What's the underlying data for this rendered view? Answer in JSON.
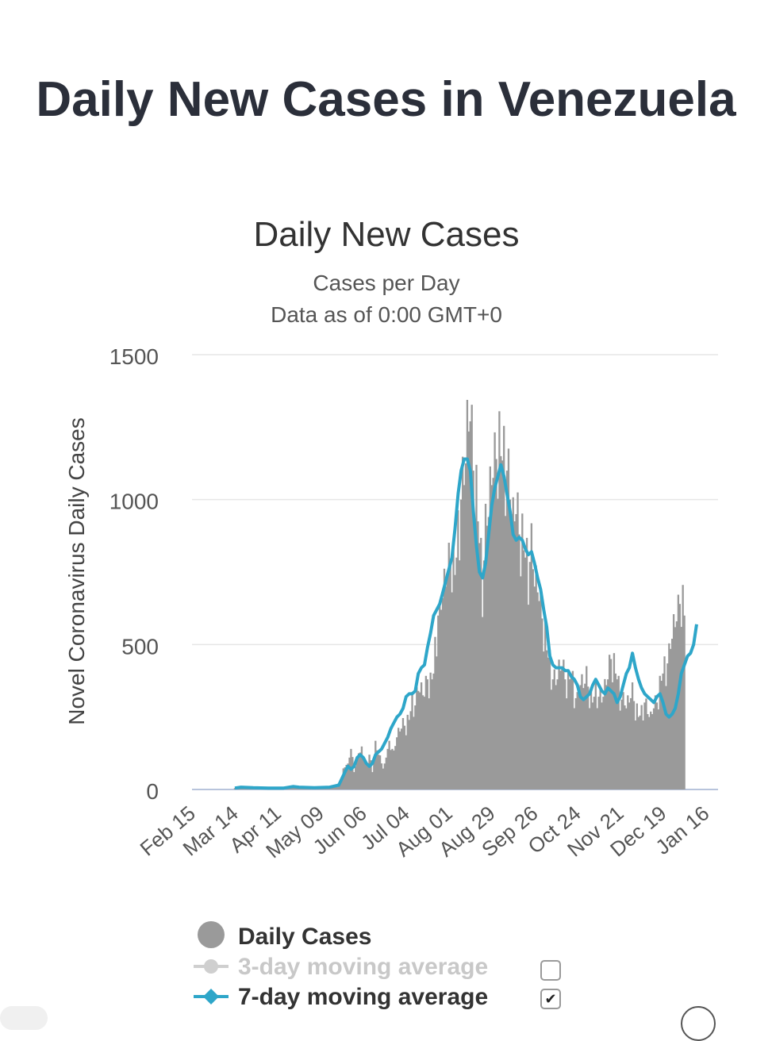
{
  "page": {
    "title": "Daily New Cases in Venezuela"
  },
  "colors": {
    "bars": "#9a9a9a",
    "ma7": "#2ea6c9",
    "ma3": "#cfcfcf",
    "grid": "#e6e6e6",
    "text": "#333333"
  },
  "chart_data": {
    "type": "bar",
    "title": "Daily New Cases",
    "subtitle_line1": "Cases per Day",
    "subtitle_line2": "Data as of 0:00 GMT+0",
    "ylabel": "Novel Coronavirus Daily Cases",
    "xlabel": "",
    "ylim": [
      0,
      1500
    ],
    "yticks": [
      0,
      500,
      1000,
      1500
    ],
    "x_range_days": [
      0,
      344
    ],
    "xticks": [
      {
        "day": 0,
        "label": "Feb 15"
      },
      {
        "day": 28,
        "label": "Mar 14"
      },
      {
        "day": 56,
        "label": "Apr 11"
      },
      {
        "day": 84,
        "label": "May 09"
      },
      {
        "day": 112,
        "label": "Jun 06"
      },
      {
        "day": 140,
        "label": "Jul 04"
      },
      {
        "day": 168,
        "label": "Aug 01"
      },
      {
        "day": 196,
        "label": "Aug 29"
      },
      {
        "day": 224,
        "label": "Sep 26"
      },
      {
        "day": 252,
        "label": "Oct 24"
      },
      {
        "day": 280,
        "label": "Nov 21"
      },
      {
        "day": 308,
        "label": "Dec 19"
      },
      {
        "day": 336,
        "label": "Jan 16"
      }
    ],
    "series": [
      {
        "name": "Daily Cases",
        "kind": "bar",
        "points": [
          [
            28,
            5
          ],
          [
            40,
            8
          ],
          [
            55,
            5
          ],
          [
            66,
            10
          ],
          [
            80,
            5
          ],
          [
            95,
            10
          ],
          [
            98,
            40
          ],
          [
            100,
            90
          ],
          [
            102,
            80
          ],
          [
            104,
            140
          ],
          [
            106,
            60
          ],
          [
            108,
            100
          ],
          [
            110,
            150
          ],
          [
            114,
            80
          ],
          [
            116,
            120
          ],
          [
            118,
            60
          ],
          [
            120,
            150
          ],
          [
            122,
            120
          ],
          [
            124,
            90
          ],
          [
            126,
            80
          ],
          [
            128,
            140
          ],
          [
            130,
            160
          ],
          [
            132,
            120
          ],
          [
            134,
            180
          ],
          [
            136,
            200
          ],
          [
            138,
            220
          ],
          [
            140,
            220
          ],
          [
            142,
            240
          ],
          [
            144,
            300
          ],
          [
            146,
            290
          ],
          [
            148,
            340
          ],
          [
            150,
            330
          ],
          [
            152,
            320
          ],
          [
            154,
            380
          ],
          [
            156,
            360
          ],
          [
            158,
            400
          ],
          [
            160,
            540
          ],
          [
            161,
            600
          ],
          [
            162,
            580
          ],
          [
            164,
            660
          ],
          [
            166,
            700
          ],
          [
            168,
            760
          ],
          [
            170,
            800
          ],
          [
            172,
            740
          ],
          [
            174,
            860
          ],
          [
            176,
            1000
          ],
          [
            178,
            1050
          ],
          [
            180,
            1200
          ],
          [
            182,
            1270
          ],
          [
            184,
            1100
          ],
          [
            186,
            1000
          ],
          [
            188,
            850
          ],
          [
            190,
            700
          ],
          [
            192,
            880
          ],
          [
            194,
            940
          ],
          [
            196,
            1050
          ],
          [
            198,
            1100
          ],
          [
            200,
            1180
          ],
          [
            202,
            1150
          ],
          [
            204,
            1120
          ],
          [
            206,
            1100
          ],
          [
            208,
            1000
          ],
          [
            210,
            900
          ],
          [
            212,
            950
          ],
          [
            214,
            880
          ],
          [
            216,
            850
          ],
          [
            218,
            800
          ],
          [
            220,
            750
          ],
          [
            222,
            820
          ],
          [
            224,
            700
          ],
          [
            226,
            680
          ],
          [
            228,
            620
          ],
          [
            230,
            560
          ],
          [
            232,
            480
          ],
          [
            234,
            430
          ],
          [
            236,
            380
          ],
          [
            238,
            360
          ],
          [
            240,
            400
          ],
          [
            242,
            420
          ],
          [
            244,
            380
          ],
          [
            246,
            360
          ],
          [
            248,
            400
          ],
          [
            250,
            330
          ],
          [
            252,
            300
          ],
          [
            254,
            360
          ],
          [
            256,
            350
          ],
          [
            258,
            380
          ],
          [
            260,
            330
          ],
          [
            262,
            300
          ],
          [
            264,
            340
          ],
          [
            266,
            320
          ],
          [
            268,
            300
          ],
          [
            270,
            340
          ],
          [
            272,
            380
          ],
          [
            274,
            450
          ],
          [
            276,
            420
          ],
          [
            278,
            380
          ],
          [
            280,
            320
          ],
          [
            282,
            300
          ],
          [
            284,
            280
          ],
          [
            286,
            300
          ],
          [
            288,
            330
          ],
          [
            290,
            280
          ],
          [
            292,
            250
          ],
          [
            294,
            260
          ],
          [
            296,
            300
          ],
          [
            298,
            260
          ],
          [
            300,
            240
          ],
          [
            302,
            280
          ],
          [
            304,
            300
          ],
          [
            306,
            350
          ],
          [
            308,
            400
          ],
          [
            310,
            420
          ],
          [
            312,
            450
          ],
          [
            314,
            520
          ],
          [
            316,
            560
          ],
          [
            318,
            600
          ],
          [
            319,
            640
          ],
          [
            320,
            660
          ],
          [
            322,
            600
          ]
        ]
      },
      {
        "name": "3-day moving average",
        "kind": "line",
        "enabled": false,
        "points": []
      },
      {
        "name": "7-day moving average",
        "kind": "line",
        "enabled": true,
        "points": [
          [
            28,
            5
          ],
          [
            32,
            8
          ],
          [
            40,
            6
          ],
          [
            50,
            5
          ],
          [
            60,
            5
          ],
          [
            66,
            10
          ],
          [
            70,
            8
          ],
          [
            80,
            6
          ],
          [
            90,
            8
          ],
          [
            96,
            15
          ],
          [
            100,
            60
          ],
          [
            102,
            80
          ],
          [
            104,
            70
          ],
          [
            106,
            80
          ],
          [
            108,
            110
          ],
          [
            110,
            120
          ],
          [
            112,
            110
          ],
          [
            114,
            90
          ],
          [
            116,
            80
          ],
          [
            118,
            90
          ],
          [
            120,
            120
          ],
          [
            124,
            140
          ],
          [
            128,
            180
          ],
          [
            130,
            210
          ],
          [
            132,
            230
          ],
          [
            134,
            250
          ],
          [
            136,
            260
          ],
          [
            138,
            280
          ],
          [
            140,
            320
          ],
          [
            142,
            330
          ],
          [
            144,
            330
          ],
          [
            146,
            340
          ],
          [
            148,
            400
          ],
          [
            150,
            420
          ],
          [
            152,
            430
          ],
          [
            154,
            490
          ],
          [
            156,
            540
          ],
          [
            158,
            600
          ],
          [
            160,
            620
          ],
          [
            162,
            640
          ],
          [
            164,
            680
          ],
          [
            166,
            720
          ],
          [
            168,
            760
          ],
          [
            170,
            800
          ],
          [
            172,
            900
          ],
          [
            174,
            1020
          ],
          [
            176,
            1100
          ],
          [
            178,
            1140
          ],
          [
            180,
            1140
          ],
          [
            182,
            1100
          ],
          [
            184,
            960
          ],
          [
            186,
            840
          ],
          [
            188,
            750
          ],
          [
            190,
            730
          ],
          [
            192,
            780
          ],
          [
            194,
            880
          ],
          [
            196,
            980
          ],
          [
            198,
            1040
          ],
          [
            200,
            1080
          ],
          [
            202,
            1120
          ],
          [
            204,
            1080
          ],
          [
            206,
            1020
          ],
          [
            208,
            960
          ],
          [
            210,
            880
          ],
          [
            212,
            860
          ],
          [
            214,
            870
          ],
          [
            216,
            860
          ],
          [
            218,
            830
          ],
          [
            220,
            810
          ],
          [
            222,
            820
          ],
          [
            224,
            780
          ],
          [
            226,
            730
          ],
          [
            228,
            690
          ],
          [
            230,
            620
          ],
          [
            232,
            560
          ],
          [
            234,
            460
          ],
          [
            236,
            430
          ],
          [
            238,
            420
          ],
          [
            240,
            420
          ],
          [
            242,
            420
          ],
          [
            244,
            410
          ],
          [
            246,
            410
          ],
          [
            248,
            390
          ],
          [
            250,
            380
          ],
          [
            252,
            360
          ],
          [
            254,
            320
          ],
          [
            256,
            310
          ],
          [
            258,
            320
          ],
          [
            260,
            330
          ],
          [
            262,
            360
          ],
          [
            264,
            380
          ],
          [
            266,
            360
          ],
          [
            268,
            340
          ],
          [
            270,
            330
          ],
          [
            272,
            350
          ],
          [
            274,
            340
          ],
          [
            276,
            330
          ],
          [
            278,
            300
          ],
          [
            280,
            320
          ],
          [
            282,
            360
          ],
          [
            284,
            400
          ],
          [
            286,
            420
          ],
          [
            288,
            470
          ],
          [
            290,
            420
          ],
          [
            292,
            380
          ],
          [
            294,
            350
          ],
          [
            296,
            330
          ],
          [
            298,
            320
          ],
          [
            300,
            310
          ],
          [
            302,
            300
          ],
          [
            304,
            320
          ],
          [
            306,
            330
          ],
          [
            308,
            300
          ],
          [
            310,
            260
          ],
          [
            312,
            250
          ],
          [
            314,
            260
          ],
          [
            316,
            280
          ],
          [
            318,
            330
          ],
          [
            320,
            400
          ],
          [
            322,
            430
          ],
          [
            324,
            460
          ],
          [
            326,
            470
          ],
          [
            328,
            500
          ],
          [
            330,
            570
          ]
        ]
      }
    ]
  },
  "legend": {
    "items": [
      {
        "label": "Daily Cases",
        "checkbox": null
      },
      {
        "label": "3-day moving average",
        "checkbox": "unchecked"
      },
      {
        "label": "7-day moving average",
        "checkbox": "✔"
      }
    ]
  }
}
